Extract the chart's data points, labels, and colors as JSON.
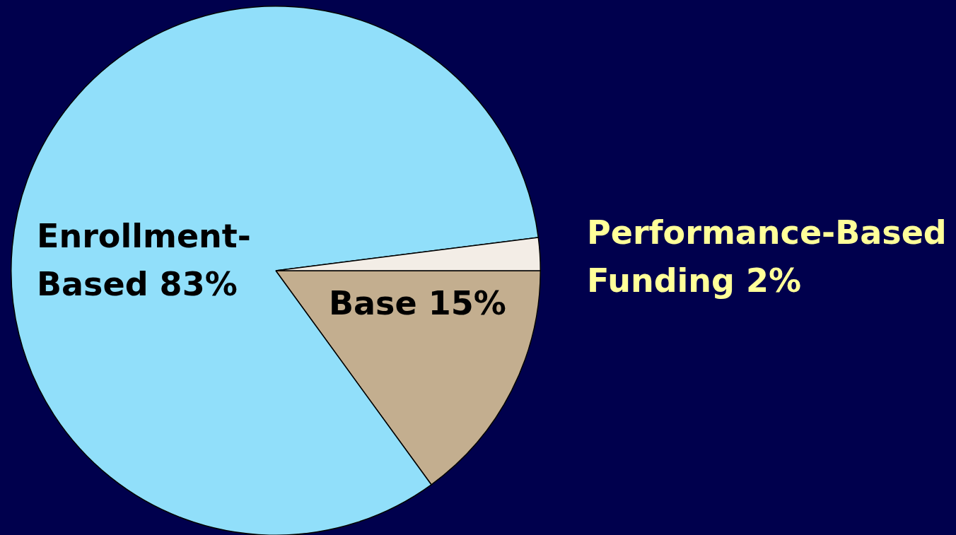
{
  "chart_data": {
    "type": "pie",
    "categories": [
      "Base",
      "Enrollment-Based",
      "Performance-Based Funding"
    ],
    "values": [
      15,
      83,
      2
    ],
    "colors": [
      "#c3ae8f",
      "#91dffa",
      "#f3ede6"
    ],
    "value_labels": [
      "15%",
      "83%",
      "2%"
    ],
    "legend": false
  }
}
